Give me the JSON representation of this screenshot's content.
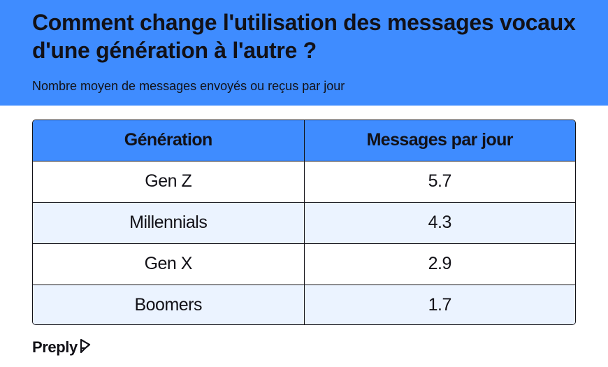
{
  "title": "Comment change l'utilisation des messages vocaux d'une génération à l'autre ?",
  "subtitle": "Nombre moyen de messages envoyés ou reçus par jour",
  "colors": {
    "header_bg": "#3f8cff",
    "row_alt": "#ebf3ff",
    "text": "#121117"
  },
  "chart_data": {
    "type": "table",
    "title": "Comment change l'utilisation des messages vocaux d'une génération à l'autre ?",
    "subtitle": "Nombre moyen de messages envoyés ou reçus par jour",
    "columns": [
      "Génération",
      "Messages par jour"
    ],
    "rows": [
      [
        "Gen Z",
        "5.7"
      ],
      [
        "Millennials",
        "4.3"
      ],
      [
        "Gen X",
        "2.9"
      ],
      [
        "Boomers",
        "1.7"
      ]
    ]
  },
  "brand": {
    "name": "Preply",
    "icon": "preply-logo-icon"
  }
}
